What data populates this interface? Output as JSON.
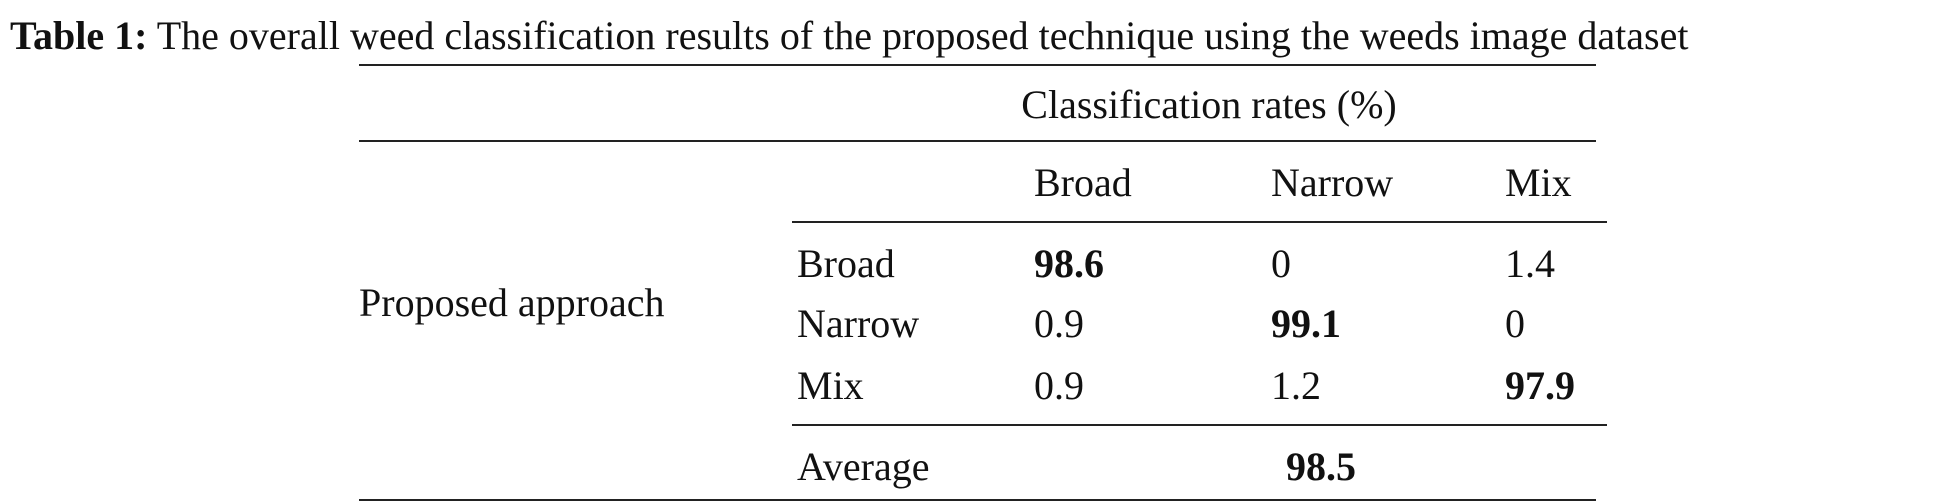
{
  "caption": {
    "label": "Table 1:",
    "text": "The overall weed classification results of the proposed technique using the weeds image dataset"
  },
  "table": {
    "group_header": "Classification rates (%)",
    "method": "Proposed approach",
    "columns": [
      "Broad",
      "Narrow",
      "Mix"
    ],
    "rows": [
      {
        "label": "Broad",
        "values": [
          "98.6",
          "0",
          "1.4"
        ]
      },
      {
        "label": "Narrow",
        "values": [
          "0.9",
          "99.1",
          "0"
        ]
      },
      {
        "label": "Mix",
        "values": [
          "0.9",
          "1.2",
          "97.9"
        ]
      }
    ],
    "average": {
      "label": "Average",
      "value": "98.5"
    }
  }
}
